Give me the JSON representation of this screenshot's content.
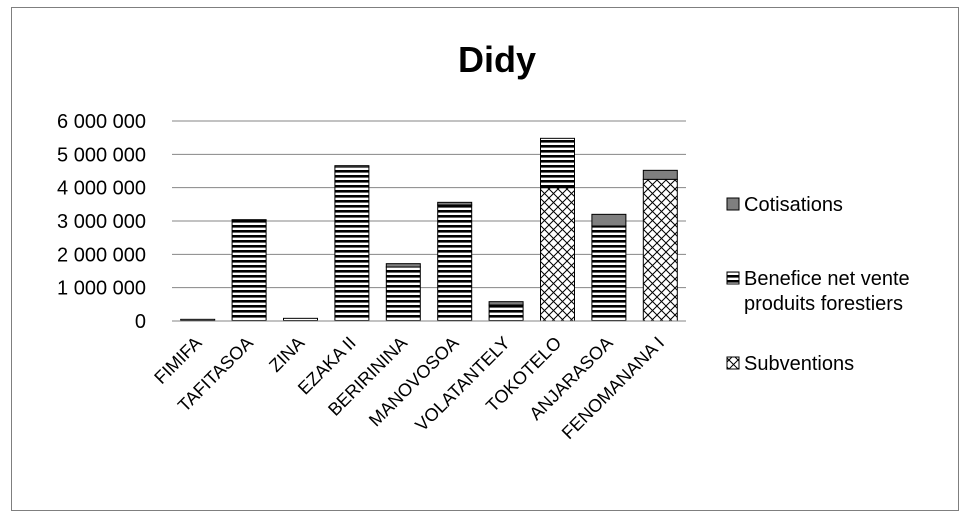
{
  "chart_data": {
    "type": "bar",
    "stacked": true,
    "title": "Didy",
    "xlabel": "",
    "ylabel": "",
    "ylim": [
      0,
      6000000
    ],
    "yticks": [
      0,
      1000000,
      2000000,
      3000000,
      4000000,
      5000000,
      6000000
    ],
    "ytick_labels": [
      "0",
      "1 000 000",
      "2 000 000",
      "3 000 000",
      "4 000 000",
      "5 000 000",
      "6 000 000"
    ],
    "grid": true,
    "legend_position": "right",
    "categories": [
      "FIMIFA",
      "TAFITASOA",
      "ZINA",
      "EZAKA II",
      "BERIRININA",
      "MANOVOSOA",
      "VOLATANTELY",
      "TOKOTELO",
      "ANJARASOA",
      "FENOMANANA I"
    ],
    "series": [
      {
        "name": "Subventions",
        "pattern": "crosshatch",
        "values": [
          0,
          0,
          0,
          0,
          0,
          0,
          0,
          4000000,
          0,
          4250000
        ]
      },
      {
        "name": "Benefice net vente produits forestiers",
        "pattern": "horizontal-stripes",
        "values": [
          50000,
          3020000,
          80000,
          4620000,
          1620000,
          3480000,
          480000,
          1480000,
          2850000,
          0
        ]
      },
      {
        "name": "Cotisations",
        "pattern": "solid-gray",
        "values": [
          0,
          20000,
          0,
          40000,
          100000,
          80000,
          100000,
          0,
          350000,
          270000
        ]
      }
    ],
    "legend_order": [
      "Cotisations",
      "Benefice net vente produits forestiers",
      "Subventions"
    ],
    "colors": {
      "cotisations": "#7f7f7f",
      "stripe": "#000000",
      "background": "#ffffff",
      "grid": "#868686"
    }
  }
}
